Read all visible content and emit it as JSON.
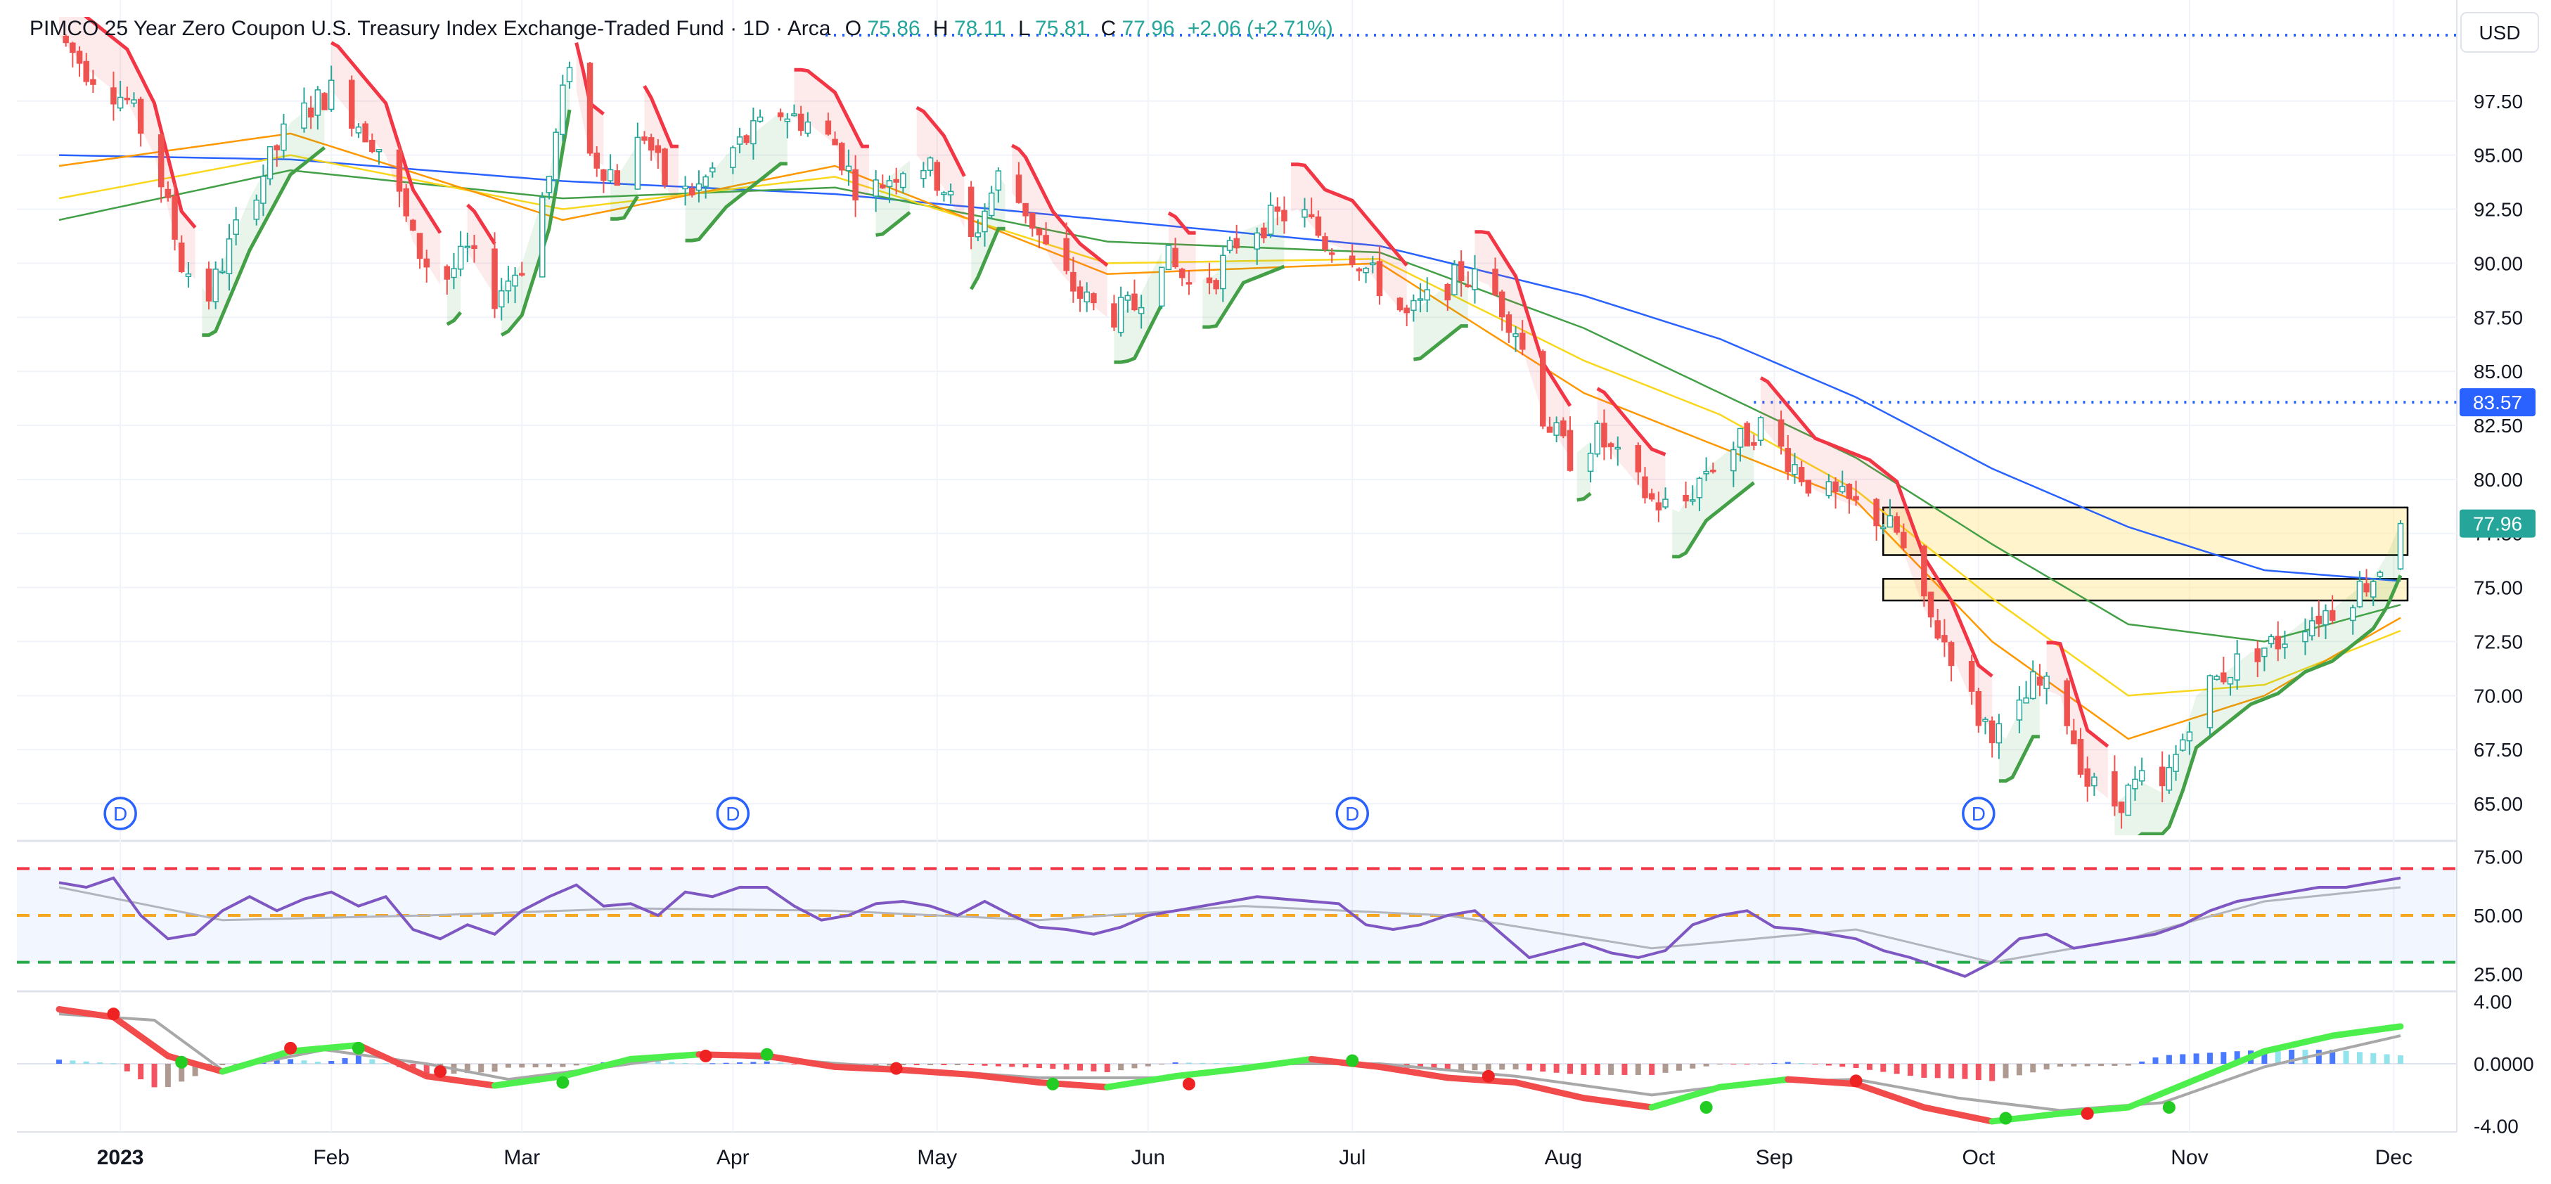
{
  "header": {
    "symbol_desc": "PIMCO 25 Year Zero Coupon U.S. Treasury Index Exchange-Traded Fund · 1D · Arca",
    "o_label": "O",
    "o_value": "75.86",
    "h_label": "H",
    "h_value": "78.11",
    "l_label": "L",
    "l_value": "75.81",
    "c_label": "C",
    "c_value": "77.96",
    "change": "+2.06 (+2.71%)"
  },
  "currency_button": "USD",
  "price_badges": {
    "level_line": "83.57",
    "last_price": "77.96"
  },
  "dividend_marker_label": "D",
  "colors": {
    "up": "#26a69a",
    "down": "#ef5350",
    "label_blue": "#2962ff",
    "last_price_green": "#26a69a",
    "rsi_line": "#7e57c2",
    "ema_blue": "#2962ff",
    "ema_green": "#43a047",
    "ema_yellow": "#f9d71c",
    "ema_orange": "#ff9800"
  },
  "chart_data": [
    {
      "type": "candlestick",
      "panel": "price",
      "y_ticks": [
        "97.50",
        "95.00",
        "92.50",
        "90.00",
        "87.50",
        "85.00",
        "82.50",
        "80.00",
        "77.50",
        "75.00",
        "72.50",
        "70.00",
        "67.50",
        "65.00"
      ],
      "y_range": [
        63.8,
        101.2
      ],
      "x_labels": [
        "2023",
        "Feb",
        "Mar",
        "Apr",
        "May",
        "Jun",
        "Jul",
        "Aug",
        "Sep",
        "Oct",
        "Nov",
        "Dec"
      ],
      "x_label_day": [
        15,
        46,
        74,
        105,
        135,
        166,
        196,
        227,
        258,
        288,
        319,
        349
      ],
      "x_range": [
        6,
        350
      ],
      "dividend_days": [
        15,
        105,
        196,
        288
      ],
      "key_points": [
        [
          6,
          100.5
        ],
        [
          10,
          99.0
        ],
        [
          16,
          97.5
        ],
        [
          20,
          95.0
        ],
        [
          24,
          90.0
        ],
        [
          28,
          88.5
        ],
        [
          34,
          93.0
        ],
        [
          40,
          96.5
        ],
        [
          46,
          98.0
        ],
        [
          50,
          96.5
        ],
        [
          54,
          95.0
        ],
        [
          58,
          91.0
        ],
        [
          62,
          89.0
        ],
        [
          66,
          90.5
        ],
        [
          70,
          88.5
        ],
        [
          74,
          90.0
        ],
        [
          78,
          94.0
        ],
        [
          81,
          99.5
        ],
        [
          84,
          95.0
        ],
        [
          88,
          94.0
        ],
        [
          92,
          96.0
        ],
        [
          96,
          93.0
        ],
        [
          100,
          93.5
        ],
        [
          104,
          95.0
        ],
        [
          108,
          96.0
        ],
        [
          112,
          97.0
        ],
        [
          116,
          96.5
        ],
        [
          120,
          95.5
        ],
        [
          124,
          93.0
        ],
        [
          128,
          94.0
        ],
        [
          132,
          95.0
        ],
        [
          136,
          93.5
        ],
        [
          140,
          91.0
        ],
        [
          144,
          94.0
        ],
        [
          148,
          92.5
        ],
        [
          152,
          90.0
        ],
        [
          156,
          88.5
        ],
        [
          160,
          87.5
        ],
        [
          164,
          88.0
        ],
        [
          168,
          90.5
        ],
        [
          172,
          89.0
        ],
        [
          176,
          89.5
        ],
        [
          180,
          91.5
        ],
        [
          184,
          92.0
        ],
        [
          188,
          92.5
        ],
        [
          192,
          91.0
        ],
        [
          196,
          90.5
        ],
        [
          200,
          89.0
        ],
        [
          204,
          87.5
        ],
        [
          208,
          88.5
        ],
        [
          212,
          89.5
        ],
        [
          216,
          89.0
        ],
        [
          220,
          87.0
        ],
        [
          224,
          83.0
        ],
        [
          228,
          81.0
        ],
        [
          232,
          82.0
        ],
        [
          236,
          80.5
        ],
        [
          240,
          79.0
        ],
        [
          244,
          78.5
        ],
        [
          248,
          80.5
        ],
        [
          252,
          81.5
        ],
        [
          256,
          82.5
        ],
        [
          260,
          81.0
        ],
        [
          264,
          79.5
        ],
        [
          268,
          79.0
        ],
        [
          272,
          78.5
        ],
        [
          276,
          77.5
        ],
        [
          280,
          74.0
        ],
        [
          284,
          72.0
        ],
        [
          288,
          69.0
        ],
        [
          292,
          68.0
        ],
        [
          296,
          70.5
        ],
        [
          300,
          70.0
        ],
        [
          304,
          66.0
        ],
        [
          308,
          65.0
        ],
        [
          312,
          66.0
        ],
        [
          315,
          65.5
        ],
        [
          318,
          68.0
        ],
        [
          320,
          70.0
        ],
        [
          324,
          71.0
        ],
        [
          328,
          72.0
        ],
        [
          332,
          72.5
        ],
        [
          336,
          73.5
        ],
        [
          340,
          74.0
        ],
        [
          344,
          75.0
        ],
        [
          346,
          75.5
        ],
        [
          348,
          76.5
        ],
        [
          350,
          77.96
        ]
      ],
      "last": {
        "open": 75.86,
        "high": 78.11,
        "low": 75.81,
        "close": 77.96
      },
      "horizontal_level": 83.57,
      "zones": [
        {
          "from_day": 274,
          "to_day": 350,
          "low": 76.5,
          "high": 78.7
        },
        {
          "from_day": 274,
          "to_day": 350,
          "low": 74.4,
          "high": 75.4
        }
      ],
      "moving_averages": [
        {
          "color": "#2962ff",
          "values": [
            [
              6,
              95.0
            ],
            [
              40,
              94.8
            ],
            [
              80,
              93.8
            ],
            [
              120,
              93.2
            ],
            [
              160,
              92.0
            ],
            [
              200,
              90.8
            ],
            [
              230,
              88.5
            ],
            [
              250,
              86.5
            ],
            [
              270,
              83.8
            ],
            [
              290,
              80.5
            ],
            [
              310,
              77.8
            ],
            [
              330,
              75.8
            ],
            [
              350,
              75.3
            ]
          ]
        },
        {
          "color": "#43a047",
          "values": [
            [
              6,
              92.0
            ],
            [
              40,
              94.3
            ],
            [
              80,
              93.0
            ],
            [
              120,
              93.5
            ],
            [
              160,
              91.0
            ],
            [
              200,
              90.5
            ],
            [
              230,
              87.0
            ],
            [
              250,
              84.0
            ],
            [
              270,
              81.0
            ],
            [
              290,
              77.0
            ],
            [
              310,
              73.3
            ],
            [
              330,
              72.5
            ],
            [
              350,
              74.2
            ]
          ]
        },
        {
          "color": "#f9d71c",
          "values": [
            [
              6,
              93.0
            ],
            [
              40,
              95.0
            ],
            [
              80,
              92.5
            ],
            [
              120,
              94.0
            ],
            [
              160,
              90.0
            ],
            [
              200,
              90.2
            ],
            [
              230,
              85.5
            ],
            [
              250,
              83.0
            ],
            [
              270,
              79.5
            ],
            [
              290,
              74.5
            ],
            [
              310,
              70.0
            ],
            [
              330,
              70.5
            ],
            [
              350,
              73.0
            ]
          ]
        },
        {
          "color": "#ff9800",
          "values": [
            [
              6,
              94.5
            ],
            [
              40,
              96.0
            ],
            [
              80,
              92.0
            ],
            [
              120,
              94.5
            ],
            [
              160,
              89.5
            ],
            [
              200,
              90.0
            ],
            [
              230,
              84.0
            ],
            [
              250,
              81.5
            ],
            [
              270,
              79.0
            ],
            [
              290,
              72.5
            ],
            [
              310,
              68.0
            ],
            [
              330,
              70.0
            ],
            [
              350,
              73.6
            ]
          ]
        }
      ]
    },
    {
      "type": "line",
      "panel": "rsi",
      "y_ticks": [
        "75.00",
        "50.00",
        "25.00"
      ],
      "y_range": [
        20,
        80
      ],
      "levels": [
        70,
        50,
        30
      ],
      "values": [
        [
          6,
          64
        ],
        [
          10,
          62
        ],
        [
          14,
          66
        ],
        [
          18,
          50
        ],
        [
          22,
          40
        ],
        [
          26,
          42
        ],
        [
          30,
          52
        ],
        [
          34,
          58
        ],
        [
          38,
          52
        ],
        [
          42,
          57
        ],
        [
          46,
          60
        ],
        [
          50,
          54
        ],
        [
          54,
          58
        ],
        [
          58,
          44
        ],
        [
          62,
          40
        ],
        [
          66,
          46
        ],
        [
          70,
          42
        ],
        [
          74,
          52
        ],
        [
          78,
          58
        ],
        [
          82,
          63
        ],
        [
          86,
          54
        ],
        [
          90,
          55
        ],
        [
          94,
          50
        ],
        [
          98,
          60
        ],
        [
          102,
          58
        ],
        [
          106,
          62
        ],
        [
          110,
          62
        ],
        [
          114,
          54
        ],
        [
          118,
          48
        ],
        [
          122,
          50
        ],
        [
          126,
          55
        ],
        [
          130,
          56
        ],
        [
          134,
          54
        ],
        [
          138,
          50
        ],
        [
          142,
          56
        ],
        [
          146,
          50
        ],
        [
          150,
          45
        ],
        [
          154,
          44
        ],
        [
          158,
          42
        ],
        [
          162,
          45
        ],
        [
          166,
          50
        ],
        [
          170,
          52
        ],
        [
          174,
          54
        ],
        [
          178,
          56
        ],
        [
          182,
          58
        ],
        [
          186,
          57
        ],
        [
          190,
          56
        ],
        [
          194,
          55
        ],
        [
          198,
          46
        ],
        [
          202,
          44
        ],
        [
          206,
          46
        ],
        [
          210,
          50
        ],
        [
          214,
          52
        ],
        [
          218,
          42
        ],
        [
          222,
          32
        ],
        [
          226,
          35
        ],
        [
          230,
          38
        ],
        [
          234,
          34
        ],
        [
          238,
          32
        ],
        [
          242,
          35
        ],
        [
          246,
          46
        ],
        [
          250,
          50
        ],
        [
          254,
          52
        ],
        [
          258,
          45
        ],
        [
          262,
          44
        ],
        [
          266,
          42
        ],
        [
          270,
          40
        ],
        [
          274,
          35
        ],
        [
          278,
          32
        ],
        [
          282,
          28
        ],
        [
          286,
          24
        ],
        [
          290,
          30
        ],
        [
          294,
          40
        ],
        [
          298,
          42
        ],
        [
          302,
          36
        ],
        [
          306,
          38
        ],
        [
          310,
          40
        ],
        [
          314,
          42
        ],
        [
          318,
          46
        ],
        [
          322,
          52
        ],
        [
          326,
          56
        ],
        [
          330,
          58
        ],
        [
          334,
          60
        ],
        [
          338,
          62
        ],
        [
          342,
          62
        ],
        [
          346,
          64
        ],
        [
          350,
          66
        ]
      ],
      "signal_values": [
        [
          6,
          62
        ],
        [
          30,
          48
        ],
        [
          60,
          50
        ],
        [
          90,
          53
        ],
        [
          120,
          52
        ],
        [
          150,
          48
        ],
        [
          180,
          54
        ],
        [
          210,
          50
        ],
        [
          240,
          36
        ],
        [
          270,
          44
        ],
        [
          290,
          30
        ],
        [
          310,
          40
        ],
        [
          330,
          56
        ],
        [
          350,
          62
        ]
      ]
    },
    {
      "type": "histogram",
      "panel": "macd",
      "y_ticks": [
        "4.00",
        "0.0000",
        "-4.00"
      ],
      "y_range": [
        -4.2,
        4.2
      ],
      "macd_line": [
        [
          6,
          3.5
        ],
        [
          14,
          3.0
        ],
        [
          22,
          0.5
        ],
        [
          30,
          -0.5
        ],
        [
          40,
          0.8
        ],
        [
          50,
          1.2
        ],
        [
          60,
          -0.8
        ],
        [
          70,
          -1.4
        ],
        [
          80,
          -0.8
        ],
        [
          90,
          0.3
        ],
        [
          100,
          0.6
        ],
        [
          110,
          0.5
        ],
        [
          120,
          -0.2
        ],
        [
          130,
          -0.4
        ],
        [
          140,
          -0.7
        ],
        [
          150,
          -1.2
        ],
        [
          160,
          -1.5
        ],
        [
          170,
          -0.8
        ],
        [
          180,
          -0.3
        ],
        [
          190,
          0.3
        ],
        [
          200,
          -0.2
        ],
        [
          210,
          -0.9
        ],
        [
          220,
          -1.2
        ],
        [
          230,
          -2.2
        ],
        [
          240,
          -2.8
        ],
        [
          250,
          -1.5
        ],
        [
          260,
          -1.0
        ],
        [
          270,
          -1.3
        ],
        [
          280,
          -2.8
        ],
        [
          290,
          -3.7
        ],
        [
          300,
          -3.2
        ],
        [
          310,
          -2.8
        ],
        [
          320,
          -1.0
        ],
        [
          330,
          0.8
        ],
        [
          340,
          1.8
        ],
        [
          350,
          2.4
        ]
      ],
      "signal_line": [
        [
          6,
          3.2
        ],
        [
          20,
          2.8
        ],
        [
          30,
          -0.4
        ],
        [
          45,
          0.9
        ],
        [
          60,
          0.0
        ],
        [
          72,
          -1.0
        ],
        [
          85,
          -0.3
        ],
        [
          100,
          0.6
        ],
        [
          115,
          0.2
        ],
        [
          130,
          -0.3
        ],
        [
          150,
          -0.9
        ],
        [
          170,
          -0.9
        ],
        [
          185,
          0.0
        ],
        [
          200,
          0.0
        ],
        [
          220,
          -0.8
        ],
        [
          240,
          -2.0
        ],
        [
          255,
          -1.2
        ],
        [
          270,
          -1.0
        ],
        [
          285,
          -2.2
        ],
        [
          300,
          -3.0
        ],
        [
          315,
          -2.5
        ],
        [
          330,
          -0.2
        ],
        [
          350,
          1.8
        ]
      ],
      "crosses": [
        [
          14,
          3.2
        ],
        [
          24,
          0.1
        ],
        [
          40,
          1.0
        ],
        [
          50,
          1.0
        ],
        [
          62,
          -0.5
        ],
        [
          80,
          -1.2
        ],
        [
          101,
          0.5
        ],
        [
          110,
          0.6
        ],
        [
          129,
          -0.3
        ],
        [
          152,
          -1.3
        ],
        [
          172,
          -1.3
        ],
        [
          196,
          0.2
        ],
        [
          216,
          -0.8
        ],
        [
          248,
          -2.8
        ],
        [
          270,
          -1.1
        ],
        [
          292,
          -3.5
        ],
        [
          304,
          -3.2
        ],
        [
          316,
          -2.8
        ]
      ]
    }
  ]
}
